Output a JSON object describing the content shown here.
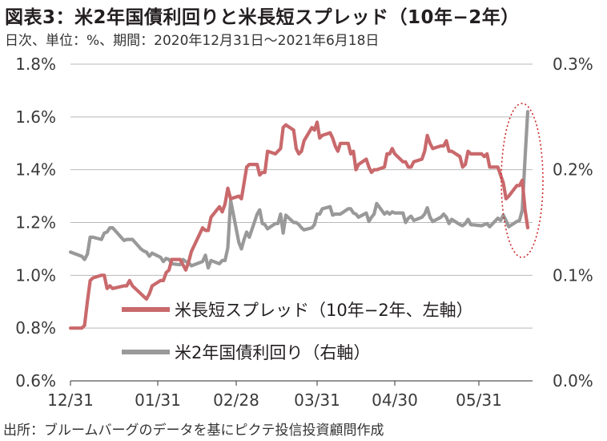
{
  "title": "図表3：米2年国債利回りと米長短スプレッド（10年−2年）",
  "subtitle": "日次、単位：%、期間：2020年12月31日〜2021年6月18日",
  "source": "出所：ブルームバーグのデータを基にピクテ投信投資顧問作成",
  "colors": {
    "spread": "#c9696c",
    "yield": "#999999",
    "grid": "#b9b9b9",
    "highlight": "#cc2a2a"
  },
  "chart_data": {
    "type": "line",
    "title": "図表3：米2年国債利回りと米長短スプレッド（10年−2年）",
    "x_tick_labels": [
      "12/31",
      "01/31",
      "02/28",
      "03/31",
      "04/30",
      "05/31"
    ],
    "y_left": {
      "ticks": [
        "0.6%",
        "0.8%",
        "1.0%",
        "1.2%",
        "1.4%",
        "1.6%",
        "1.8%"
      ],
      "ylim": [
        0.6,
        1.8
      ]
    },
    "y_right": {
      "ticks": [
        "0.0%",
        "0.1%",
        "0.2%",
        "0.3%"
      ],
      "ylim": [
        0.0,
        0.3
      ]
    },
    "grid": true,
    "legend": "bottom-left inside plot",
    "annotation": "dotted red ellipse around mid-June 2021",
    "series": [
      {
        "name": "米長短スプレッド（10年−2年、左軸）",
        "axis": "left",
        "color": "#c9696c",
        "points": [
          [
            "2020-12-31",
            0.8
          ],
          [
            "2021-01-04",
            0.8
          ],
          [
            "2021-01-05",
            0.81
          ],
          [
            "2021-01-06",
            0.9
          ],
          [
            "2021-01-07",
            0.98
          ],
          [
            "2021-01-08",
            0.99
          ],
          [
            "2021-01-11",
            1.0
          ],
          [
            "2021-01-12",
            1.0
          ],
          [
            "2021-01-13",
            0.95
          ],
          [
            "2021-01-14",
            0.96
          ],
          [
            "2021-01-15",
            0.95
          ],
          [
            "2021-01-19",
            0.96
          ],
          [
            "2021-01-20",
            0.96
          ],
          [
            "2021-01-21",
            0.98
          ],
          [
            "2021-01-22",
            0.96
          ],
          [
            "2021-01-25",
            0.93
          ],
          [
            "2021-01-26",
            0.92
          ],
          [
            "2021-01-27",
            0.91
          ],
          [
            "2021-01-28",
            0.93
          ],
          [
            "2021-01-29",
            0.96
          ],
          [
            "2021-02-01",
            0.98
          ],
          [
            "2021-02-02",
            0.98
          ],
          [
            "2021-02-03",
            1.01
          ],
          [
            "2021-02-04",
            1.02
          ],
          [
            "2021-02-05",
            1.06
          ],
          [
            "2021-02-08",
            1.06
          ],
          [
            "2021-02-09",
            1.04
          ],
          [
            "2021-02-10",
            1.02
          ],
          [
            "2021-02-11",
            1.05
          ],
          [
            "2021-02-12",
            1.09
          ],
          [
            "2021-02-16",
            1.18
          ],
          [
            "2021-02-17",
            1.17
          ],
          [
            "2021-02-18",
            1.17
          ],
          [
            "2021-02-19",
            1.22
          ],
          [
            "2021-02-22",
            1.26
          ],
          [
            "2021-02-23",
            1.24
          ],
          [
            "2021-02-24",
            1.27
          ],
          [
            "2021-02-25",
            1.33
          ],
          [
            "2021-02-26",
            1.29
          ],
          [
            "2021-03-01",
            1.3
          ],
          [
            "2021-03-02",
            1.29
          ],
          [
            "2021-03-03",
            1.35
          ],
          [
            "2021-03-04",
            1.41
          ],
          [
            "2021-03-05",
            1.42
          ],
          [
            "2021-03-08",
            1.42
          ],
          [
            "2021-03-09",
            1.38
          ],
          [
            "2021-03-10",
            1.39
          ],
          [
            "2021-03-11",
            1.39
          ],
          [
            "2021-03-12",
            1.47
          ],
          [
            "2021-03-15",
            1.46
          ],
          [
            "2021-03-16",
            1.47
          ],
          [
            "2021-03-17",
            1.48
          ],
          [
            "2021-03-18",
            1.56
          ],
          [
            "2021-03-19",
            1.57
          ],
          [
            "2021-03-22",
            1.55
          ],
          [
            "2021-03-23",
            1.48
          ],
          [
            "2021-03-24",
            1.46
          ],
          [
            "2021-03-25",
            1.47
          ],
          [
            "2021-03-26",
            1.51
          ],
          [
            "2021-03-29",
            1.56
          ],
          [
            "2021-03-30",
            1.55
          ],
          [
            "2021-03-31",
            1.58
          ],
          [
            "2021-04-01",
            1.52
          ],
          [
            "2021-04-02",
            1.53
          ],
          [
            "2021-04-05",
            1.54
          ],
          [
            "2021-04-06",
            1.52
          ],
          [
            "2021-04-07",
            1.49
          ],
          [
            "2021-04-08",
            1.47
          ],
          [
            "2021-04-09",
            1.5
          ],
          [
            "2021-04-12",
            1.5
          ],
          [
            "2021-04-13",
            1.46
          ],
          [
            "2021-04-14",
            1.47
          ],
          [
            "2021-04-15",
            1.4
          ],
          [
            "2021-04-16",
            1.42
          ],
          [
            "2021-04-19",
            1.44
          ],
          [
            "2021-04-20",
            1.41
          ],
          [
            "2021-04-21",
            1.39
          ],
          [
            "2021-04-22",
            1.4
          ],
          [
            "2021-04-23",
            1.4
          ],
          [
            "2021-04-26",
            1.41
          ],
          [
            "2021-04-27",
            1.46
          ],
          [
            "2021-04-28",
            1.46
          ],
          [
            "2021-04-29",
            1.48
          ],
          [
            "2021-04-30",
            1.46
          ],
          [
            "2021-05-03",
            1.43
          ],
          [
            "2021-05-04",
            1.43
          ],
          [
            "2021-05-05",
            1.41
          ],
          [
            "2021-05-06",
            1.41
          ],
          [
            "2021-05-07",
            1.43
          ],
          [
            "2021-05-10",
            1.44
          ],
          [
            "2021-05-11",
            1.47
          ],
          [
            "2021-05-12",
            1.53
          ],
          [
            "2021-05-13",
            1.5
          ],
          [
            "2021-05-14",
            1.48
          ],
          [
            "2021-05-17",
            1.49
          ],
          [
            "2021-05-18",
            1.49
          ],
          [
            "2021-05-19",
            1.51
          ],
          [
            "2021-05-20",
            1.47
          ],
          [
            "2021-05-21",
            1.47
          ],
          [
            "2021-05-24",
            1.45
          ],
          [
            "2021-05-25",
            1.41
          ],
          [
            "2021-05-26",
            1.42
          ],
          [
            "2021-05-27",
            1.47
          ],
          [
            "2021-05-28",
            1.46
          ],
          [
            "2021-06-01",
            1.46
          ],
          [
            "2021-06-02",
            1.45
          ],
          [
            "2021-06-03",
            1.46
          ],
          [
            "2021-06-04",
            1.41
          ],
          [
            "2021-06-07",
            1.41
          ],
          [
            "2021-06-08",
            1.38
          ],
          [
            "2021-06-09",
            1.35
          ],
          [
            "2021-06-10",
            1.29
          ],
          [
            "2021-06-11",
            1.3
          ],
          [
            "2021-06-14",
            1.34
          ],
          [
            "2021-06-15",
            1.34
          ],
          [
            "2021-06-16",
            1.36
          ],
          [
            "2021-06-17",
            1.25
          ],
          [
            "2021-06-18",
            1.18
          ]
        ]
      },
      {
        "name": "米2年国債利回り（右軸）",
        "axis": "right",
        "color": "#999999",
        "points": [
          [
            "2020-12-31",
            0.122
          ],
          [
            "2021-01-04",
            0.118
          ],
          [
            "2021-01-05",
            0.115
          ],
          [
            "2021-01-06",
            0.12
          ],
          [
            "2021-01-07",
            0.136
          ],
          [
            "2021-01-08",
            0.136
          ],
          [
            "2021-01-11",
            0.134
          ],
          [
            "2021-01-12",
            0.14
          ],
          [
            "2021-01-13",
            0.141
          ],
          [
            "2021-01-14",
            0.145
          ],
          [
            "2021-01-15",
            0.145
          ],
          [
            "2021-01-19",
            0.133
          ],
          [
            "2021-01-20",
            0.134
          ],
          [
            "2021-01-21",
            0.134
          ],
          [
            "2021-01-22",
            0.134
          ],
          [
            "2021-01-25",
            0.125
          ],
          [
            "2021-01-26",
            0.123
          ],
          [
            "2021-01-27",
            0.122
          ],
          [
            "2021-01-28",
            0.118
          ],
          [
            "2021-01-29",
            0.121
          ],
          [
            "2021-02-01",
            0.117
          ],
          [
            "2021-02-02",
            0.113
          ],
          [
            "2021-02-03",
            0.116
          ],
          [
            "2021-02-04",
            0.115
          ],
          [
            "2021-02-05",
            0.111
          ],
          [
            "2021-02-08",
            0.11
          ],
          [
            "2021-02-09",
            0.115
          ],
          [
            "2021-02-10",
            0.113
          ],
          [
            "2021-02-11",
            0.112
          ],
          [
            "2021-02-12",
            0.109
          ],
          [
            "2021-02-16",
            0.113
          ],
          [
            "2021-02-17",
            0.119
          ],
          [
            "2021-02-18",
            0.107
          ],
          [
            "2021-02-19",
            0.114
          ],
          [
            "2021-02-22",
            0.111
          ],
          [
            "2021-02-23",
            0.114
          ],
          [
            "2021-02-24",
            0.114
          ],
          [
            "2021-02-25",
            0.126
          ],
          [
            "2021-02-26",
            0.171
          ],
          [
            "2021-03-01",
            0.131
          ],
          [
            "2021-03-02",
            0.125
          ],
          [
            "2021-03-03",
            0.134
          ],
          [
            "2021-03-04",
            0.141
          ],
          [
            "2021-03-05",
            0.136
          ],
          [
            "2021-03-08",
            0.158
          ],
          [
            "2021-03-09",
            0.162
          ],
          [
            "2021-03-10",
            0.149
          ],
          [
            "2021-03-11",
            0.148
          ],
          [
            "2021-03-12",
            0.144
          ],
          [
            "2021-03-15",
            0.149
          ],
          [
            "2021-03-16",
            0.149
          ],
          [
            "2021-03-17",
            0.158
          ],
          [
            "2021-03-18",
            0.14
          ],
          [
            "2021-03-19",
            0.157
          ],
          [
            "2021-03-22",
            0.15
          ],
          [
            "2021-03-23",
            0.15
          ],
          [
            "2021-03-24",
            0.148
          ],
          [
            "2021-03-25",
            0.145
          ],
          [
            "2021-03-26",
            0.143
          ],
          [
            "2021-03-29",
            0.145
          ],
          [
            "2021-03-30",
            0.148
          ],
          [
            "2021-03-31",
            0.158
          ],
          [
            "2021-04-01",
            0.158
          ],
          [
            "2021-04-02",
            0.163
          ],
          [
            "2021-04-05",
            0.165
          ],
          [
            "2021-04-06",
            0.157
          ],
          [
            "2021-04-07",
            0.158
          ],
          [
            "2021-04-08",
            0.158
          ],
          [
            "2021-04-09",
            0.158
          ],
          [
            "2021-04-12",
            0.163
          ],
          [
            "2021-04-13",
            0.163
          ],
          [
            "2021-04-14",
            0.159
          ],
          [
            "2021-04-15",
            0.158
          ],
          [
            "2021-04-16",
            0.155
          ],
          [
            "2021-04-19",
            0.159
          ],
          [
            "2021-04-20",
            0.151
          ],
          [
            "2021-04-21",
            0.155
          ],
          [
            "2021-04-22",
            0.158
          ],
          [
            "2021-04-23",
            0.168
          ],
          [
            "2021-04-26",
            0.158
          ],
          [
            "2021-04-27",
            0.16
          ],
          [
            "2021-04-28",
            0.158
          ],
          [
            "2021-04-29",
            0.16
          ],
          [
            "2021-04-30",
            0.159
          ],
          [
            "2021-05-03",
            0.159
          ],
          [
            "2021-05-04",
            0.15
          ],
          [
            "2021-05-05",
            0.154
          ],
          [
            "2021-05-06",
            0.156
          ],
          [
            "2021-05-07",
            0.152
          ],
          [
            "2021-05-10",
            0.155
          ],
          [
            "2021-05-11",
            0.158
          ],
          [
            "2021-05-12",
            0.164
          ],
          [
            "2021-05-13",
            0.155
          ],
          [
            "2021-05-14",
            0.151
          ],
          [
            "2021-05-17",
            0.155
          ],
          [
            "2021-05-18",
            0.158
          ],
          [
            "2021-05-19",
            0.155
          ],
          [
            "2021-05-20",
            0.149
          ],
          [
            "2021-05-21",
            0.153
          ],
          [
            "2021-05-24",
            0.148
          ],
          [
            "2021-05-25",
            0.147
          ],
          [
            "2021-05-26",
            0.149
          ],
          [
            "2021-05-27",
            0.153
          ],
          [
            "2021-05-28",
            0.148
          ],
          [
            "2021-06-01",
            0.147
          ],
          [
            "2021-06-02",
            0.148
          ],
          [
            "2021-06-03",
            0.149
          ],
          [
            "2021-06-04",
            0.146
          ],
          [
            "2021-06-07",
            0.154
          ],
          [
            "2021-06-08",
            0.152
          ],
          [
            "2021-06-09",
            0.157
          ],
          [
            "2021-06-10",
            0.152
          ],
          [
            "2021-06-11",
            0.146
          ],
          [
            "2021-06-14",
            0.151
          ],
          [
            "2021-06-15",
            0.152
          ],
          [
            "2021-06-16",
            0.162
          ],
          [
            "2021-06-17",
            0.21
          ],
          [
            "2021-06-18",
            0.255
          ]
        ]
      }
    ]
  }
}
